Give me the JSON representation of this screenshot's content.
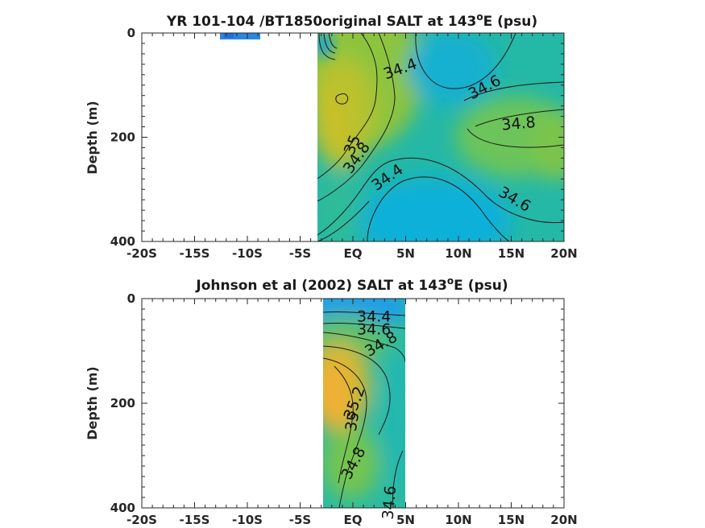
{
  "chart_data": [
    {
      "type": "heatmap",
      "title": "YR 101-104 /BT1850original SALT at 143",
      "title_sup": "o",
      "title_suffix": "E (psu)",
      "xlabel": "",
      "ylabel": "Depth (m)",
      "xlim": [
        -20,
        20
      ],
      "ylim": [
        0,
        400
      ],
      "y_reversed": true,
      "x_ticks": [
        {
          "value": -20,
          "label": "-20S"
        },
        {
          "value": -15,
          "label": "-15S"
        },
        {
          "value": -10,
          "label": "-10S"
        },
        {
          "value": -5,
          "label": "-5S"
        },
        {
          "value": 0,
          "label": "EQ"
        },
        {
          "value": 5,
          "label": "5N"
        },
        {
          "value": 10,
          "label": "10N"
        },
        {
          "value": 15,
          "label": "15N"
        },
        {
          "value": 20,
          "label": "20N"
        }
      ],
      "y_ticks": [
        {
          "value": 0,
          "label": "0"
        },
        {
          "value": 200,
          "label": "200"
        },
        {
          "value": 400,
          "label": "400"
        }
      ],
      "colormap": "parula",
      "color_range_psu": [
        34.2,
        35.4
      ],
      "data_extent": [
        {
          "lat": [
            -12,
            -8.2
          ],
          "depth": [
            0,
            12
          ]
        },
        {
          "lat": [
            -3.2,
            20
          ],
          "depth": [
            0,
            400
          ]
        }
      ],
      "contour_labels": [
        {
          "text": "34.4",
          "lat": 4.5,
          "depth": 70,
          "angle": -20
        },
        {
          "text": "34.6",
          "lat": 12.5,
          "depth": 105,
          "angle": -28
        },
        {
          "text": "34.8",
          "lat": 15.7,
          "depth": 175,
          "angle": -5
        },
        {
          "text": "35",
          "lat": 0,
          "depth": 215,
          "angle": -68
        },
        {
          "text": "34.8",
          "lat": 0.4,
          "depth": 240,
          "angle": -55
        },
        {
          "text": "34.4",
          "lat": 3.3,
          "depth": 278,
          "angle": -35
        },
        {
          "text": "34.6",
          "lat": 15.3,
          "depth": 320,
          "angle": 30
        }
      ]
    },
    {
      "type": "heatmap",
      "title": "Johnson et al (2002) SALT at 143",
      "title_sup": "o",
      "title_suffix": "E (psu)",
      "xlabel": "",
      "ylabel": "Depth (m)",
      "xlim": [
        -20,
        20
      ],
      "ylim": [
        0,
        400
      ],
      "y_reversed": true,
      "x_ticks": [
        {
          "value": -20,
          "label": "-20S"
        },
        {
          "value": -15,
          "label": "-15S"
        },
        {
          "value": -10,
          "label": "-10S"
        },
        {
          "value": -5,
          "label": "-5S"
        },
        {
          "value": 0,
          "label": "EQ"
        },
        {
          "value": 5,
          "label": "5N"
        },
        {
          "value": 10,
          "label": "10N"
        },
        {
          "value": 15,
          "label": "15N"
        },
        {
          "value": 20,
          "label": "20N"
        }
      ],
      "y_ticks": [
        {
          "value": 0,
          "label": "0"
        },
        {
          "value": 200,
          "label": "200"
        },
        {
          "value": 400,
          "label": "400"
        }
      ],
      "colormap": "parula",
      "color_range_psu": [
        34.2,
        35.4
      ],
      "data_extent": [
        {
          "lat": [
            -2.7,
            5.1
          ],
          "depth": [
            0,
            400
          ]
        }
      ],
      "contour_labels": [
        {
          "text": "34.4",
          "lat": 2,
          "depth": 35,
          "angle": 0
        },
        {
          "text": "34.6",
          "lat": 2,
          "depth": 60,
          "angle": 0
        },
        {
          "text": "34.8",
          "lat": 2.7,
          "depth": 88,
          "angle": -30
        },
        {
          "text": "35.2",
          "lat": 0.2,
          "depth": 200,
          "angle": -70
        },
        {
          "text": "35",
          "lat": 0,
          "depth": 235,
          "angle": -80
        },
        {
          "text": "34.8",
          "lat": 0.1,
          "depth": 315,
          "angle": -62
        },
        {
          "text": "34.6",
          "lat": 3.5,
          "depth": 390,
          "angle": -85
        }
      ]
    }
  ]
}
